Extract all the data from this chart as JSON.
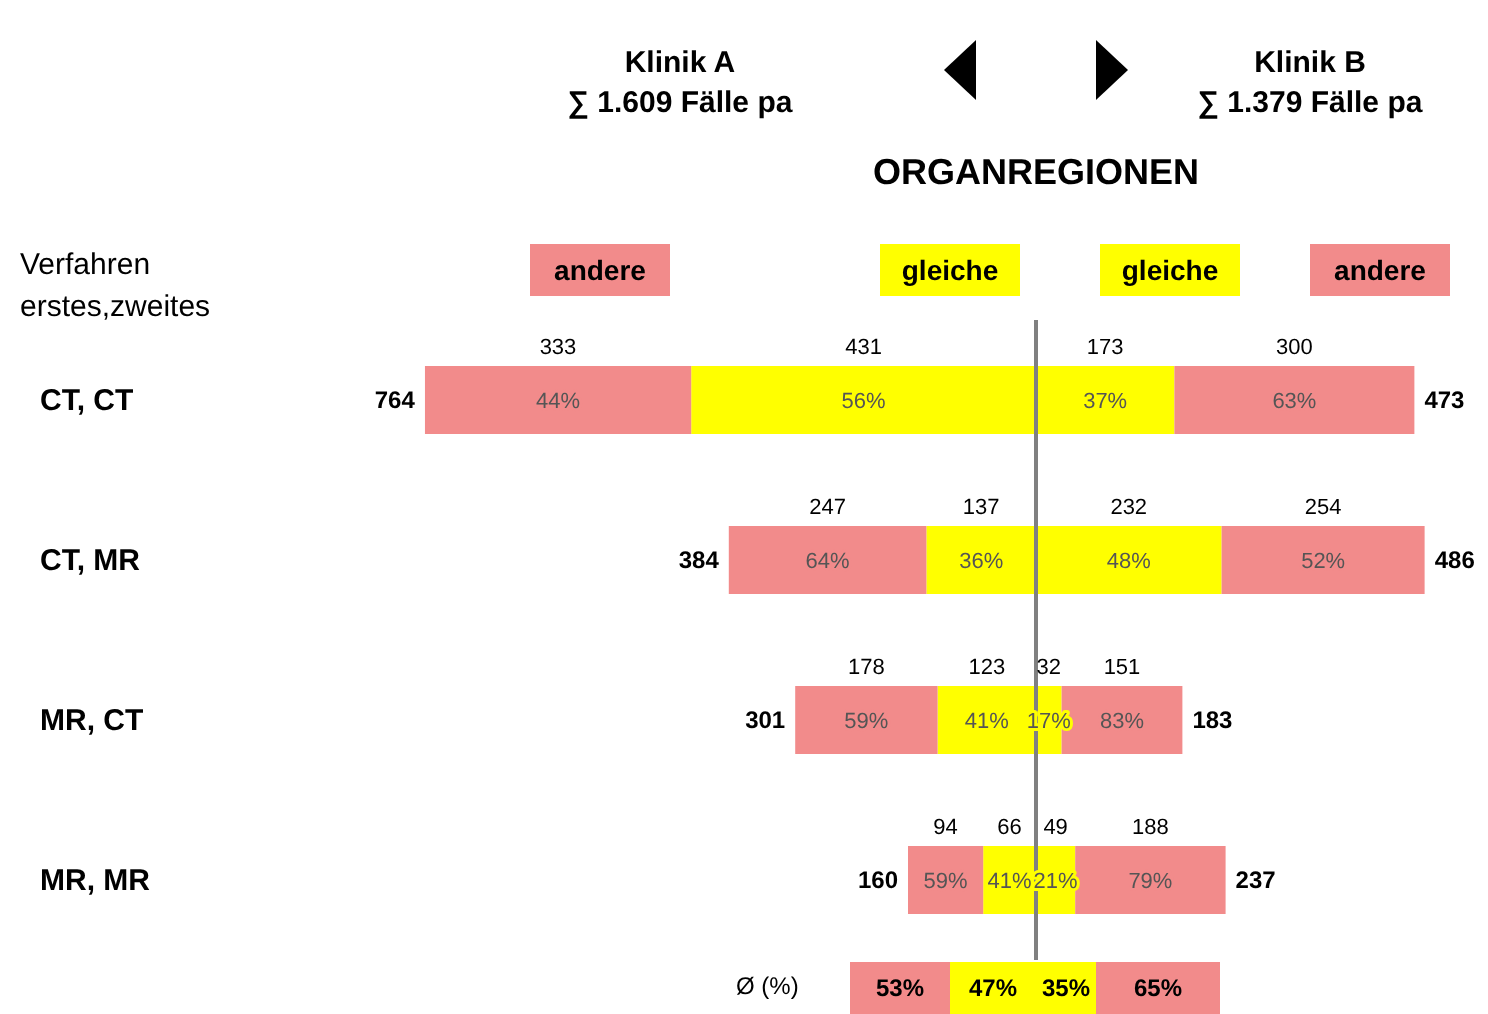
{
  "chart_data": [
    {
      "type": "bar",
      "orientation": "horizontal",
      "stacked": true,
      "title": "Klinik A",
      "subtitle": "∑ 1.609 Fälle pa",
      "ylabel": "Verfahren erstes,zweites",
      "xlim": [
        764,
        0
      ],
      "tick_labels": "y",
      "legend": "top",
      "data_labels": true,
      "categories": [
        "CT, CT",
        "CT, MR",
        "MR, CT",
        "MR, MR"
      ],
      "series": [
        {
          "name": "gleiche",
          "color": "#ffff00",
          "values": [
            431,
            137,
            123,
            66
          ]
        },
        {
          "name": "andere",
          "color": "#f28b8b",
          "values": [
            333,
            247,
            178,
            94
          ]
        }
      ],
      "totals": [
        "764",
        "384",
        "301",
        "160"
      ],
      "annotations": [
        "56%",
        "36%",
        "41%",
        "41%",
        "44%",
        "64%",
        "59%",
        "59%",
        "Ø (%)",
        "53%",
        "47%"
      ]
    },
    {
      "type": "bar",
      "orientation": "horizontal",
      "stacked": true,
      "title": "Klinik B",
      "subtitle": "∑ 1.379 Fälle pa",
      "xlim": [
        0,
        486
      ],
      "tick_labels": false,
      "legend": "top",
      "data_labels": true,
      "categories": [
        null,
        null,
        null,
        null
      ],
      "series": [
        {
          "name": "gleiche",
          "color": "#ffff00",
          "values": [
            173,
            232,
            32,
            49
          ]
        },
        {
          "name": "andere",
          "color": "#f28b8b",
          "values": [
            300,
            254,
            151,
            188
          ]
        }
      ],
      "totals": [
        "473",
        "486",
        "183",
        "237"
      ],
      "annotations": [
        "37%",
        "48%",
        "17%",
        "21%",
        "63%",
        "52%",
        "83%",
        "79%",
        "35%",
        "65%"
      ]
    },
    {
      "type": "other",
      "title": "ORGANREGIONEN"
    }
  ]
}
